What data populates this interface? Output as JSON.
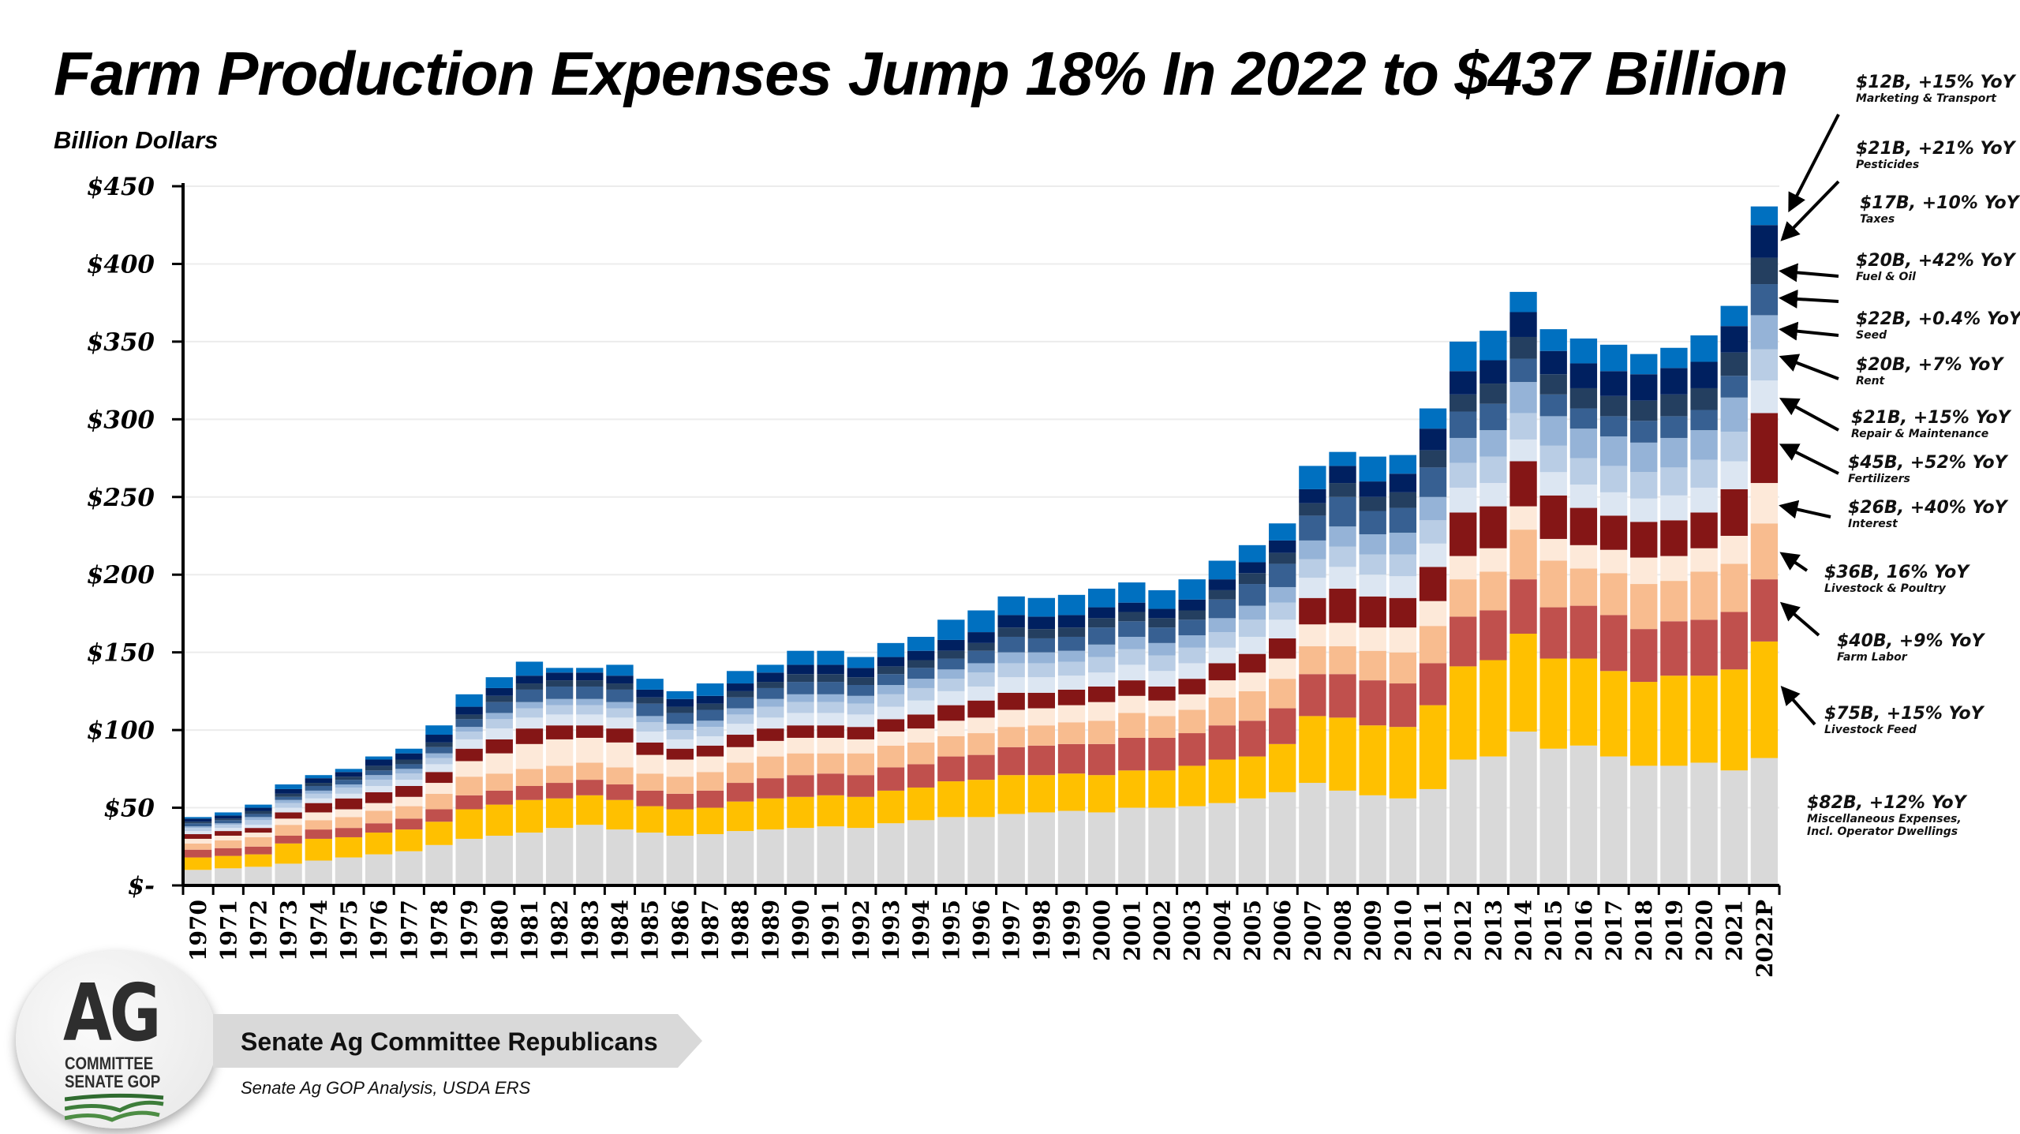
{
  "header": {
    "title": "Farm Production Expenses Jump 18% In 2022 to $437 Billion",
    "units": "Billion Dollars"
  },
  "footer": {
    "logo_main": "AG",
    "logo_line1": "COMMITTEE",
    "logo_line2": "SENATE GOP",
    "banner": "Senate Ag Committee Republicans",
    "source": "Senate Ag GOP Analysis, USDA ERS"
  },
  "annotations": [
    {
      "value": "$12B, +15% YoY",
      "label": "Marketing & Transport"
    },
    {
      "value": "$21B, +21% YoY",
      "label": "Pesticides"
    },
    {
      "value": "$17B, +10% YoY",
      "label": "Taxes"
    },
    {
      "value": "$20B, +42% YoY",
      "label": "Fuel & Oil"
    },
    {
      "value": "$22B, +0.4% YoY",
      "label": "Seed"
    },
    {
      "value": "$20B, +7% YoY",
      "label": "Rent"
    },
    {
      "value": "$21B, +15% YoY",
      "label": "Repair & Maintenance"
    },
    {
      "value": "$45B, +52% YoY",
      "label": "Fertilizers"
    },
    {
      "value": "$26B, +40% YoY",
      "label": "Interest"
    },
    {
      "value": "$36B, 16% YoY",
      "label": "Livestock & Poultry"
    },
    {
      "value": "$40B, +9% YoY",
      "label": "Farm Labor"
    },
    {
      "value": "$75B, +15% YoY",
      "label": "Livestock Feed"
    },
    {
      "value": "$82B, +12% YoY",
      "label": "Miscellaneous Expenses, Incl. Operator Dwellings"
    }
  ],
  "chart_data": {
    "type": "bar",
    "stacked": true,
    "title": "Farm Production Expenses Jump 18% In 2022 to $437 Billion",
    "ylabel": "Billion Dollars",
    "xlabel": "",
    "ylim": [
      0,
      450
    ],
    "yticks": [
      0,
      50,
      100,
      150,
      200,
      250,
      300,
      350,
      400,
      450
    ],
    "ytick_labels": [
      "$-",
      "$50",
      "$100",
      "$150",
      "$200",
      "$250",
      "$300",
      "$350",
      "$400",
      "$450"
    ],
    "grid": true,
    "legend": "right-side annotations with arrows",
    "categories": [
      "1970",
      "1971",
      "1972",
      "1973",
      "1974",
      "1975",
      "1976",
      "1977",
      "1978",
      "1979",
      "1980",
      "1981",
      "1982",
      "1983",
      "1984",
      "1985",
      "1986",
      "1987",
      "1988",
      "1989",
      "1990",
      "1991",
      "1992",
      "1993",
      "1994",
      "1995",
      "1996",
      "1997",
      "1998",
      "1999",
      "2000",
      "2001",
      "2002",
      "2003",
      "2004",
      "2005",
      "2006",
      "2007",
      "2008",
      "2009",
      "2010",
      "2011",
      "2012",
      "2013",
      "2014",
      "2015",
      "2016",
      "2017",
      "2018",
      "2019",
      "2020",
      "2021",
      "2022P"
    ],
    "totals": [
      44,
      47,
      52,
      65,
      71,
      75,
      83,
      88,
      103,
      123,
      134,
      140,
      140,
      140,
      142,
      133,
      125,
      130,
      138,
      145,
      151,
      151,
      150,
      158,
      163,
      171,
      177,
      186,
      185,
      187,
      191,
      195,
      192,
      197,
      208,
      220,
      233,
      270,
      286,
      274,
      279,
      307,
      354,
      361,
      391,
      358,
      350,
      350,
      344,
      348,
      358,
      371,
      437
    ],
    "series": [
      {
        "name": "Miscellaneous Expenses, Incl. Operator Dwellings",
        "color": "#d9d9d9",
        "values": [
          10,
          11,
          12,
          14,
          16,
          18,
          20,
          22,
          26,
          30,
          32,
          34,
          37,
          39,
          36,
          34,
          32,
          33,
          35,
          36,
          37,
          38,
          37,
          40,
          42,
          44,
          44,
          46,
          47,
          48,
          47,
          50,
          50,
          51,
          53,
          56,
          60,
          66,
          61,
          58,
          56,
          62,
          81,
          83,
          99,
          88,
          90,
          83,
          77,
          77,
          79,
          74,
          82
        ]
      },
      {
        "name": "Livestock Feed",
        "color": "#ffc000",
        "values": [
          8,
          8,
          8,
          13,
          14,
          13,
          14,
          14,
          15,
          19,
          20,
          21,
          19,
          19,
          19,
          17,
          17,
          17,
          19,
          20,
          20,
          20,
          20,
          21,
          21,
          23,
          24,
          25,
          24,
          24,
          24,
          24,
          24,
          26,
          28,
          27,
          31,
          43,
          47,
          45,
          46,
          54,
          60,
          62,
          63,
          58,
          56,
          55,
          54,
          58,
          56,
          65,
          75
        ]
      },
      {
        "name": "Farm Labor",
        "color": "#c0504d",
        "values": [
          5,
          5,
          5,
          5,
          6,
          6,
          6,
          7,
          8,
          9,
          9,
          9,
          10,
          10,
          10,
          10,
          10,
          11,
          12,
          13,
          14,
          14,
          14,
          15,
          15,
          16,
          16,
          18,
          19,
          19,
          20,
          21,
          21,
          21,
          22,
          23,
          23,
          27,
          28,
          29,
          28,
          27,
          32,
          32,
          35,
          33,
          34,
          36,
          34,
          35,
          36,
          37,
          40
        ]
      },
      {
        "name": "Livestock & Poultry",
        "color": "#f8bc8f",
        "values": [
          4,
          5,
          6,
          7,
          6,
          7,
          8,
          8,
          10,
          12,
          11,
          11,
          11,
          11,
          11,
          11,
          11,
          12,
          13,
          14,
          14,
          13,
          14,
          14,
          14,
          13,
          14,
          13,
          13,
          14,
          15,
          16,
          14,
          15,
          18,
          19,
          19,
          18,
          18,
          19,
          20,
          24,
          24,
          25,
          32,
          30,
          24,
          27,
          29,
          26,
          31,
          31,
          36
        ]
      },
      {
        "name": "Interest",
        "color": "#fde9d9",
        "values": [
          3,
          3,
          3,
          4,
          5,
          5,
          5,
          6,
          7,
          10,
          13,
          16,
          17,
          16,
          16,
          12,
          11,
          10,
          10,
          10,
          10,
          10,
          9,
          9,
          9,
          10,
          10,
          11,
          11,
          11,
          12,
          11,
          10,
          10,
          11,
          12,
          13,
          14,
          15,
          15,
          16,
          16,
          15,
          15,
          15,
          14,
          15,
          15,
          17,
          16,
          15,
          18,
          26
        ]
      },
      {
        "name": "Fertilizers",
        "color": "#851616",
        "values": [
          3,
          3,
          3,
          4,
          6,
          7,
          7,
          7,
          7,
          8,
          9,
          10,
          9,
          8,
          9,
          8,
          7,
          7,
          8,
          8,
          8,
          8,
          8,
          8,
          9,
          10,
          11,
          11,
          10,
          10,
          10,
          10,
          9,
          10,
          11,
          12,
          13,
          17,
          22,
          20,
          19,
          22,
          28,
          27,
          29,
          28,
          24,
          22,
          23,
          23,
          23,
          30,
          45
        ]
      },
      {
        "name": "Repair & Maintenance",
        "color": "#dce6f2",
        "values": [
          2,
          2,
          2,
          3,
          3,
          3,
          4,
          4,
          5,
          6,
          7,
          7,
          7,
          7,
          7,
          7,
          6,
          6,
          7,
          7,
          8,
          8,
          8,
          8,
          9,
          9,
          9,
          10,
          10,
          9,
          9,
          10,
          10,
          10,
          10,
          11,
          12,
          13,
          14,
          14,
          14,
          15,
          16,
          15,
          14,
          15,
          15,
          15,
          15,
          16,
          16,
          18,
          21
        ]
      },
      {
        "name": "Rent",
        "color": "#b9cde5",
        "values": [
          2,
          2,
          3,
          3,
          3,
          4,
          4,
          4,
          4,
          5,
          6,
          6,
          6,
          6,
          6,
          6,
          6,
          6,
          6,
          7,
          7,
          7,
          7,
          8,
          8,
          8,
          9,
          9,
          9,
          9,
          10,
          10,
          10,
          10,
          10,
          11,
          11,
          12,
          13,
          13,
          14,
          15,
          16,
          17,
          17,
          17,
          17,
          17,
          17,
          18,
          18,
          19,
          20
        ]
      },
      {
        "name": "Seed",
        "color": "#95b3d7",
        "values": [
          1,
          1,
          2,
          2,
          2,
          2,
          3,
          3,
          3,
          3,
          4,
          4,
          4,
          4,
          4,
          4,
          4,
          4,
          4,
          5,
          5,
          5,
          5,
          6,
          6,
          6,
          6,
          7,
          7,
          7,
          8,
          8,
          8,
          8,
          9,
          9,
          10,
          12,
          13,
          13,
          14,
          15,
          16,
          17,
          20,
          19,
          19,
          19,
          19,
          19,
          19,
          22,
          22
        ]
      },
      {
        "name": "Fuel & Oil",
        "color": "#376092",
        "values": [
          2,
          2,
          2,
          2,
          3,
          3,
          3,
          3,
          4,
          5,
          7,
          8,
          8,
          8,
          8,
          8,
          7,
          7,
          7,
          7,
          8,
          8,
          7,
          7,
          7,
          7,
          8,
          10,
          9,
          9,
          11,
          10,
          10,
          10,
          12,
          14,
          15,
          16,
          19,
          15,
          16,
          19,
          17,
          17,
          15,
          14,
          13,
          13,
          14,
          14,
          13,
          14,
          20
        ]
      },
      {
        "name": "Taxes",
        "color": "#243f60",
        "values": [
          1,
          1,
          2,
          2,
          2,
          2,
          3,
          3,
          3,
          3,
          4,
          4,
          4,
          4,
          4,
          4,
          4,
          4,
          4,
          4,
          5,
          5,
          5,
          5,
          5,
          5,
          5,
          6,
          6,
          6,
          6,
          6,
          6,
          6,
          6,
          7,
          7,
          8,
          9,
          9,
          10,
          11,
          11,
          13,
          14,
          13,
          13,
          13,
          13,
          14,
          14,
          15,
          17
        ]
      },
      {
        "name": "Pesticides",
        "color": "#002060",
        "values": [
          2,
          2,
          2,
          3,
          3,
          3,
          4,
          4,
          5,
          5,
          5,
          5,
          5,
          5,
          5,
          5,
          5,
          5,
          5,
          6,
          6,
          6,
          6,
          6,
          6,
          7,
          7,
          8,
          8,
          8,
          7,
          6,
          6,
          7,
          7,
          7,
          8,
          9,
          11,
          10,
          12,
          14,
          15,
          15,
          16,
          15,
          16,
          16,
          17,
          17,
          17,
          17,
          21
        ]
      },
      {
        "name": "Marketing & Transport",
        "color": "#0070c0",
        "values": [
          1,
          2,
          2,
          3,
          2,
          2,
          2,
          3,
          6,
          8,
          7,
          9,
          3,
          3,
          7,
          7,
          5,
          8,
          8,
          5,
          9,
          9,
          7,
          9,
          9,
          13,
          14,
          12,
          12,
          13,
          12,
          13,
          12,
          13,
          12,
          11,
          11,
          15,
          9,
          16,
          12,
          13,
          19,
          19,
          13,
          14,
          16,
          17,
          13,
          13,
          17,
          13,
          12
        ]
      }
    ]
  }
}
